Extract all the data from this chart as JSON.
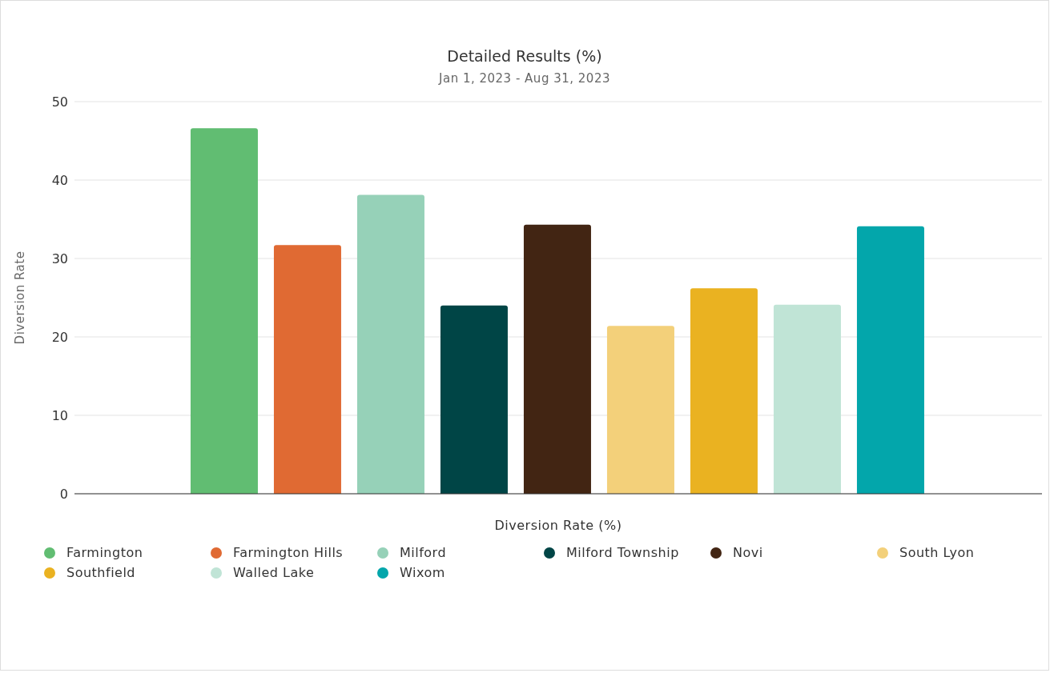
{
  "chart_data": {
    "type": "bar",
    "title": "Detailed Results (%)",
    "subtitle": "Jan 1, 2023 - Aug 31, 2023",
    "xlabel": "Diversion Rate (%)",
    "ylabel": "Diversion Rate",
    "categories": [
      null
    ],
    "series": [
      {
        "name": "Farmington",
        "color": "#61bd72",
        "values": [
          46.6
        ]
      },
      {
        "name": "Farmington Hills",
        "color": "#e06a33",
        "values": [
          31.7
        ]
      },
      {
        "name": "Milford",
        "color": "#96d1b8",
        "values": [
          38.1
        ]
      },
      {
        "name": "Milford Township",
        "color": "#004546",
        "values": [
          24.0
        ]
      },
      {
        "name": "Novi",
        "color": "#422513",
        "values": [
          34.3
        ]
      },
      {
        "name": "South Lyon",
        "color": "#f3d07a",
        "values": [
          21.4
        ]
      },
      {
        "name": "Southfield",
        "color": "#eab221",
        "values": [
          26.2
        ]
      },
      {
        "name": "Walled Lake",
        "color": "#c0e4d6",
        "values": [
          24.1
        ]
      },
      {
        "name": "Wixom",
        "color": "#03a6ab",
        "values": [
          34.1
        ]
      }
    ],
    "ylim": [
      0,
      50
    ],
    "yticks": [
      0,
      10,
      20,
      30,
      40,
      50
    ],
    "grid": "y",
    "legend": "bottom"
  }
}
